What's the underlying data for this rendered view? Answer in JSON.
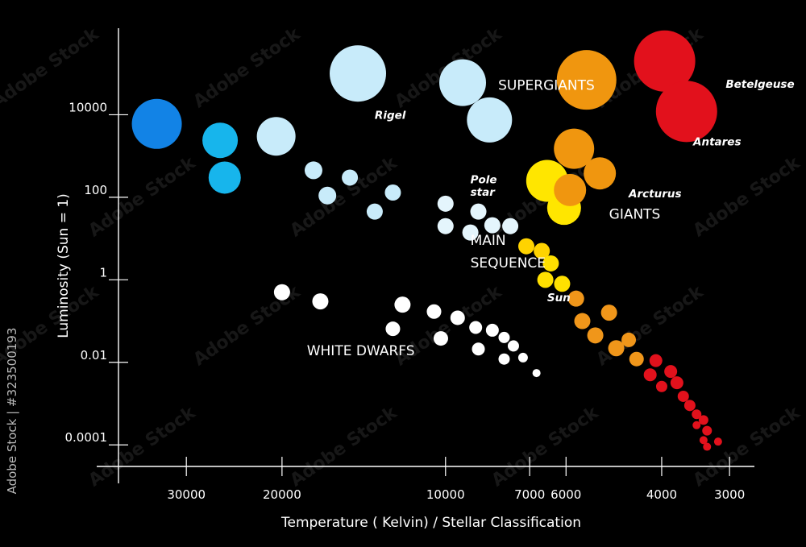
{
  "chart_data": {
    "type": "scatter",
    "title": "",
    "xlabel": "Temperature ( Kelvin) / Stellar Classification",
    "ylabel": "Luminosity (Sun = 1)",
    "x_scale": "log-reversed",
    "y_scale": "log",
    "xlim": [
      40000,
      2700
    ],
    "ylim": [
      3e-05,
      1000000
    ],
    "x_ticks": [
      {
        "value": 30000,
        "label": "30000"
      },
      {
        "value": 20000,
        "label": "20000"
      },
      {
        "value": 10000,
        "label": "10000"
      },
      {
        "value": 7000,
        "label": "7000"
      },
      {
        "value": 6000,
        "label": "6000"
      },
      {
        "value": 4000,
        "label": "4000"
      },
      {
        "value": 3000,
        "label": "3000"
      }
    ],
    "y_ticks": [
      {
        "value": 10000,
        "label": "10000"
      },
      {
        "value": 100,
        "label": "100"
      },
      {
        "value": 1,
        "label": "1"
      },
      {
        "value": 0.01,
        "label": "0.01"
      },
      {
        "value": 0.0001,
        "label": "0.0001"
      }
    ],
    "group_labels": [
      {
        "text": "SUPERGIANTS",
        "x": 8000,
        "y": 40000
      },
      {
        "text": "GIANTS",
        "x": 5000,
        "y": 30
      },
      {
        "text": "MAIN",
        "x": 9000,
        "y": 7
      },
      {
        "text": "SEQUENCE",
        "x": 9000,
        "y": 2
      },
      {
        "text": "WHITE DWARFS",
        "x": 18000,
        "y": 0.015
      }
    ],
    "star_labels": [
      {
        "text": "Betelgeuse",
        "x": 3050,
        "y": 45000
      },
      {
        "text": "Rigel",
        "x": 13500,
        "y": 8000
      },
      {
        "text": "Antares",
        "x": 3500,
        "y": 1800
      },
      {
        "text": "Pole",
        "x": 9000,
        "y": 220
      },
      {
        "text": "star",
        "x": 9000,
        "y": 110
      },
      {
        "text": "Arcturus",
        "x": 4600,
        "y": 100
      },
      {
        "text": "Sun",
        "x": 6500,
        "y": 0.3
      }
    ],
    "series": [
      {
        "name": "",
        "points": [
          {
            "x": 34000,
            "y": 6000,
            "r": 31,
            "color": "#1283e6"
          },
          {
            "x": 26000,
            "y": 2400,
            "r": 22,
            "color": "#17b5ec"
          },
          {
            "x": 25500,
            "y": 300,
            "r": 20,
            "color": "#17b5ec"
          },
          {
            "x": 20500,
            "y": 3000,
            "r": 24,
            "color": "#c8ebfa"
          },
          {
            "x": 14500,
            "y": 100000,
            "r": 35,
            "color": "#c8ebfa"
          },
          {
            "x": 9300,
            "y": 60000,
            "r": 29,
            "color": "#c8ebfa"
          },
          {
            "x": 8300,
            "y": 7500,
            "r": 28,
            "color": "#c8ebfa"
          },
          {
            "x": 17500,
            "y": 450,
            "r": 11,
            "color": "#c8ebfa"
          },
          {
            "x": 15000,
            "y": 300,
            "r": 10,
            "color": "#c8ebfa"
          },
          {
            "x": 16500,
            "y": 110,
            "r": 11,
            "color": "#c8ebfa"
          },
          {
            "x": 12500,
            "y": 130,
            "r": 10,
            "color": "#c8ebfa"
          },
          {
            "x": 13500,
            "y": 45,
            "r": 10,
            "color": "#c8ebfa"
          },
          {
            "x": 10000,
            "y": 70,
            "r": 10,
            "color": "#e4f5fc"
          },
          {
            "x": 8700,
            "y": 45,
            "r": 10,
            "color": "#e4f5fc"
          },
          {
            "x": 10000,
            "y": 20,
            "r": 10,
            "color": "#e4f5fc"
          },
          {
            "x": 9000,
            "y": 14,
            "r": 10,
            "color": "#e4f5fc"
          },
          {
            "x": 8200,
            "y": 21,
            "r": 10,
            "color": "#e4f5fc"
          },
          {
            "x": 7600,
            "y": 20,
            "r": 10,
            "color": "#e4f5fc"
          },
          {
            "x": 7100,
            "y": 6.5,
            "r": 10,
            "color": "#ffd300"
          },
          {
            "x": 6650,
            "y": 5,
            "r": 10,
            "color": "#ffd300"
          },
          {
            "x": 6400,
            "y": 2.5,
            "r": 10,
            "color": "#ffe000"
          },
          {
            "x": 6550,
            "y": 1,
            "r": 10,
            "color": "#ffe000"
          },
          {
            "x": 6100,
            "y": 0.8,
            "r": 10,
            "color": "#ffe000"
          },
          {
            "x": 5750,
            "y": 0.35,
            "r": 10,
            "color": "#f0961a"
          },
          {
            "x": 5600,
            "y": 0.1,
            "r": 10,
            "color": "#f0961a"
          },
          {
            "x": 5000,
            "y": 0.16,
            "r": 10,
            "color": "#f0961a"
          },
          {
            "x": 5300,
            "y": 0.045,
            "r": 10,
            "color": "#f0961a"
          },
          {
            "x": 4850,
            "y": 0.022,
            "r": 10,
            "color": "#f0961a"
          },
          {
            "x": 4600,
            "y": 0.035,
            "r": 9,
            "color": "#f0961a"
          },
          {
            "x": 4450,
            "y": 0.012,
            "r": 9,
            "color": "#f0961a"
          },
          {
            "x": 4100,
            "y": 0.011,
            "r": 8,
            "color": "#e2111c"
          },
          {
            "x": 3850,
            "y": 0.006,
            "r": 8,
            "color": "#e2111c"
          },
          {
            "x": 4200,
            "y": 0.005,
            "r": 8,
            "color": "#e2111c"
          },
          {
            "x": 3750,
            "y": 0.0032,
            "r": 8,
            "color": "#e2111c"
          },
          {
            "x": 4000,
            "y": 0.0026,
            "r": 7,
            "color": "#e2111c"
          },
          {
            "x": 3650,
            "y": 0.0015,
            "r": 7,
            "color": "#e2111c"
          },
          {
            "x": 3550,
            "y": 0.0009,
            "r": 7,
            "color": "#e2111c"
          },
          {
            "x": 3450,
            "y": 0.00055,
            "r": 6,
            "color": "#e2111c"
          },
          {
            "x": 3350,
            "y": 0.0004,
            "r": 6,
            "color": "#e2111c"
          },
          {
            "x": 3300,
            "y": 0.00022,
            "r": 6,
            "color": "#e2111c"
          },
          {
            "x": 3450,
            "y": 0.0003,
            "r": 5,
            "color": "#e2111c"
          },
          {
            "x": 3350,
            "y": 0.00013,
            "r": 5,
            "color": "#e2111c"
          },
          {
            "x": 3150,
            "y": 0.00012,
            "r": 5,
            "color": "#e2111c"
          },
          {
            "x": 3300,
            "y": 9e-05,
            "r": 5,
            "color": "#e2111c"
          },
          {
            "x": 6500,
            "y": 250,
            "r": 26,
            "color": "#ffe600"
          },
          {
            "x": 6050,
            "y": 55,
            "r": 21,
            "color": "#ffe600"
          },
          {
            "x": 5800,
            "y": 1500,
            "r": 25,
            "color": "#f0960f"
          },
          {
            "x": 5900,
            "y": 150,
            "r": 20,
            "color": "#f0960f"
          },
          {
            "x": 5200,
            "y": 380,
            "r": 20,
            "color": "#f0960f"
          },
          {
            "x": 5500,
            "y": 70000,
            "r": 37,
            "color": "#f0960f"
          },
          {
            "x": 3950,
            "y": 200000,
            "r": 38,
            "color": "#e2111c"
          },
          {
            "x": 3600,
            "y": 12000,
            "r": 38,
            "color": "#e2111c"
          },
          {
            "x": 20000,
            "y": 0.5,
            "r": 10,
            "color": "#ffffff"
          },
          {
            "x": 17000,
            "y": 0.3,
            "r": 10,
            "color": "#ffffff"
          },
          {
            "x": 12000,
            "y": 0.25,
            "r": 10,
            "color": "#ffffff"
          },
          {
            "x": 10500,
            "y": 0.17,
            "r": 9,
            "color": "#ffffff"
          },
          {
            "x": 9500,
            "y": 0.12,
            "r": 9,
            "color": "#ffffff"
          },
          {
            "x": 8800,
            "y": 0.07,
            "r": 8,
            "color": "#ffffff"
          },
          {
            "x": 8200,
            "y": 0.06,
            "r": 8,
            "color": "#ffffff"
          },
          {
            "x": 7800,
            "y": 0.04,
            "r": 7,
            "color": "#ffffff"
          },
          {
            "x": 7500,
            "y": 0.025,
            "r": 7,
            "color": "#ffffff"
          },
          {
            "x": 12500,
            "y": 0.065,
            "r": 9,
            "color": "#ffffff"
          },
          {
            "x": 10200,
            "y": 0.038,
            "r": 9,
            "color": "#ffffff"
          },
          {
            "x": 8700,
            "y": 0.021,
            "r": 8,
            "color": "#ffffff"
          },
          {
            "x": 7800,
            "y": 0.012,
            "r": 7,
            "color": "#ffffff"
          },
          {
            "x": 7200,
            "y": 0.013,
            "r": 6,
            "color": "#ffffff"
          },
          {
            "x": 6800,
            "y": 0.0055,
            "r": 5,
            "color": "#ffffff"
          }
        ]
      }
    ]
  },
  "watermark": {
    "text": "Adobe Stock"
  },
  "credit": {
    "text": "Adobe Stock | #323500193"
  }
}
